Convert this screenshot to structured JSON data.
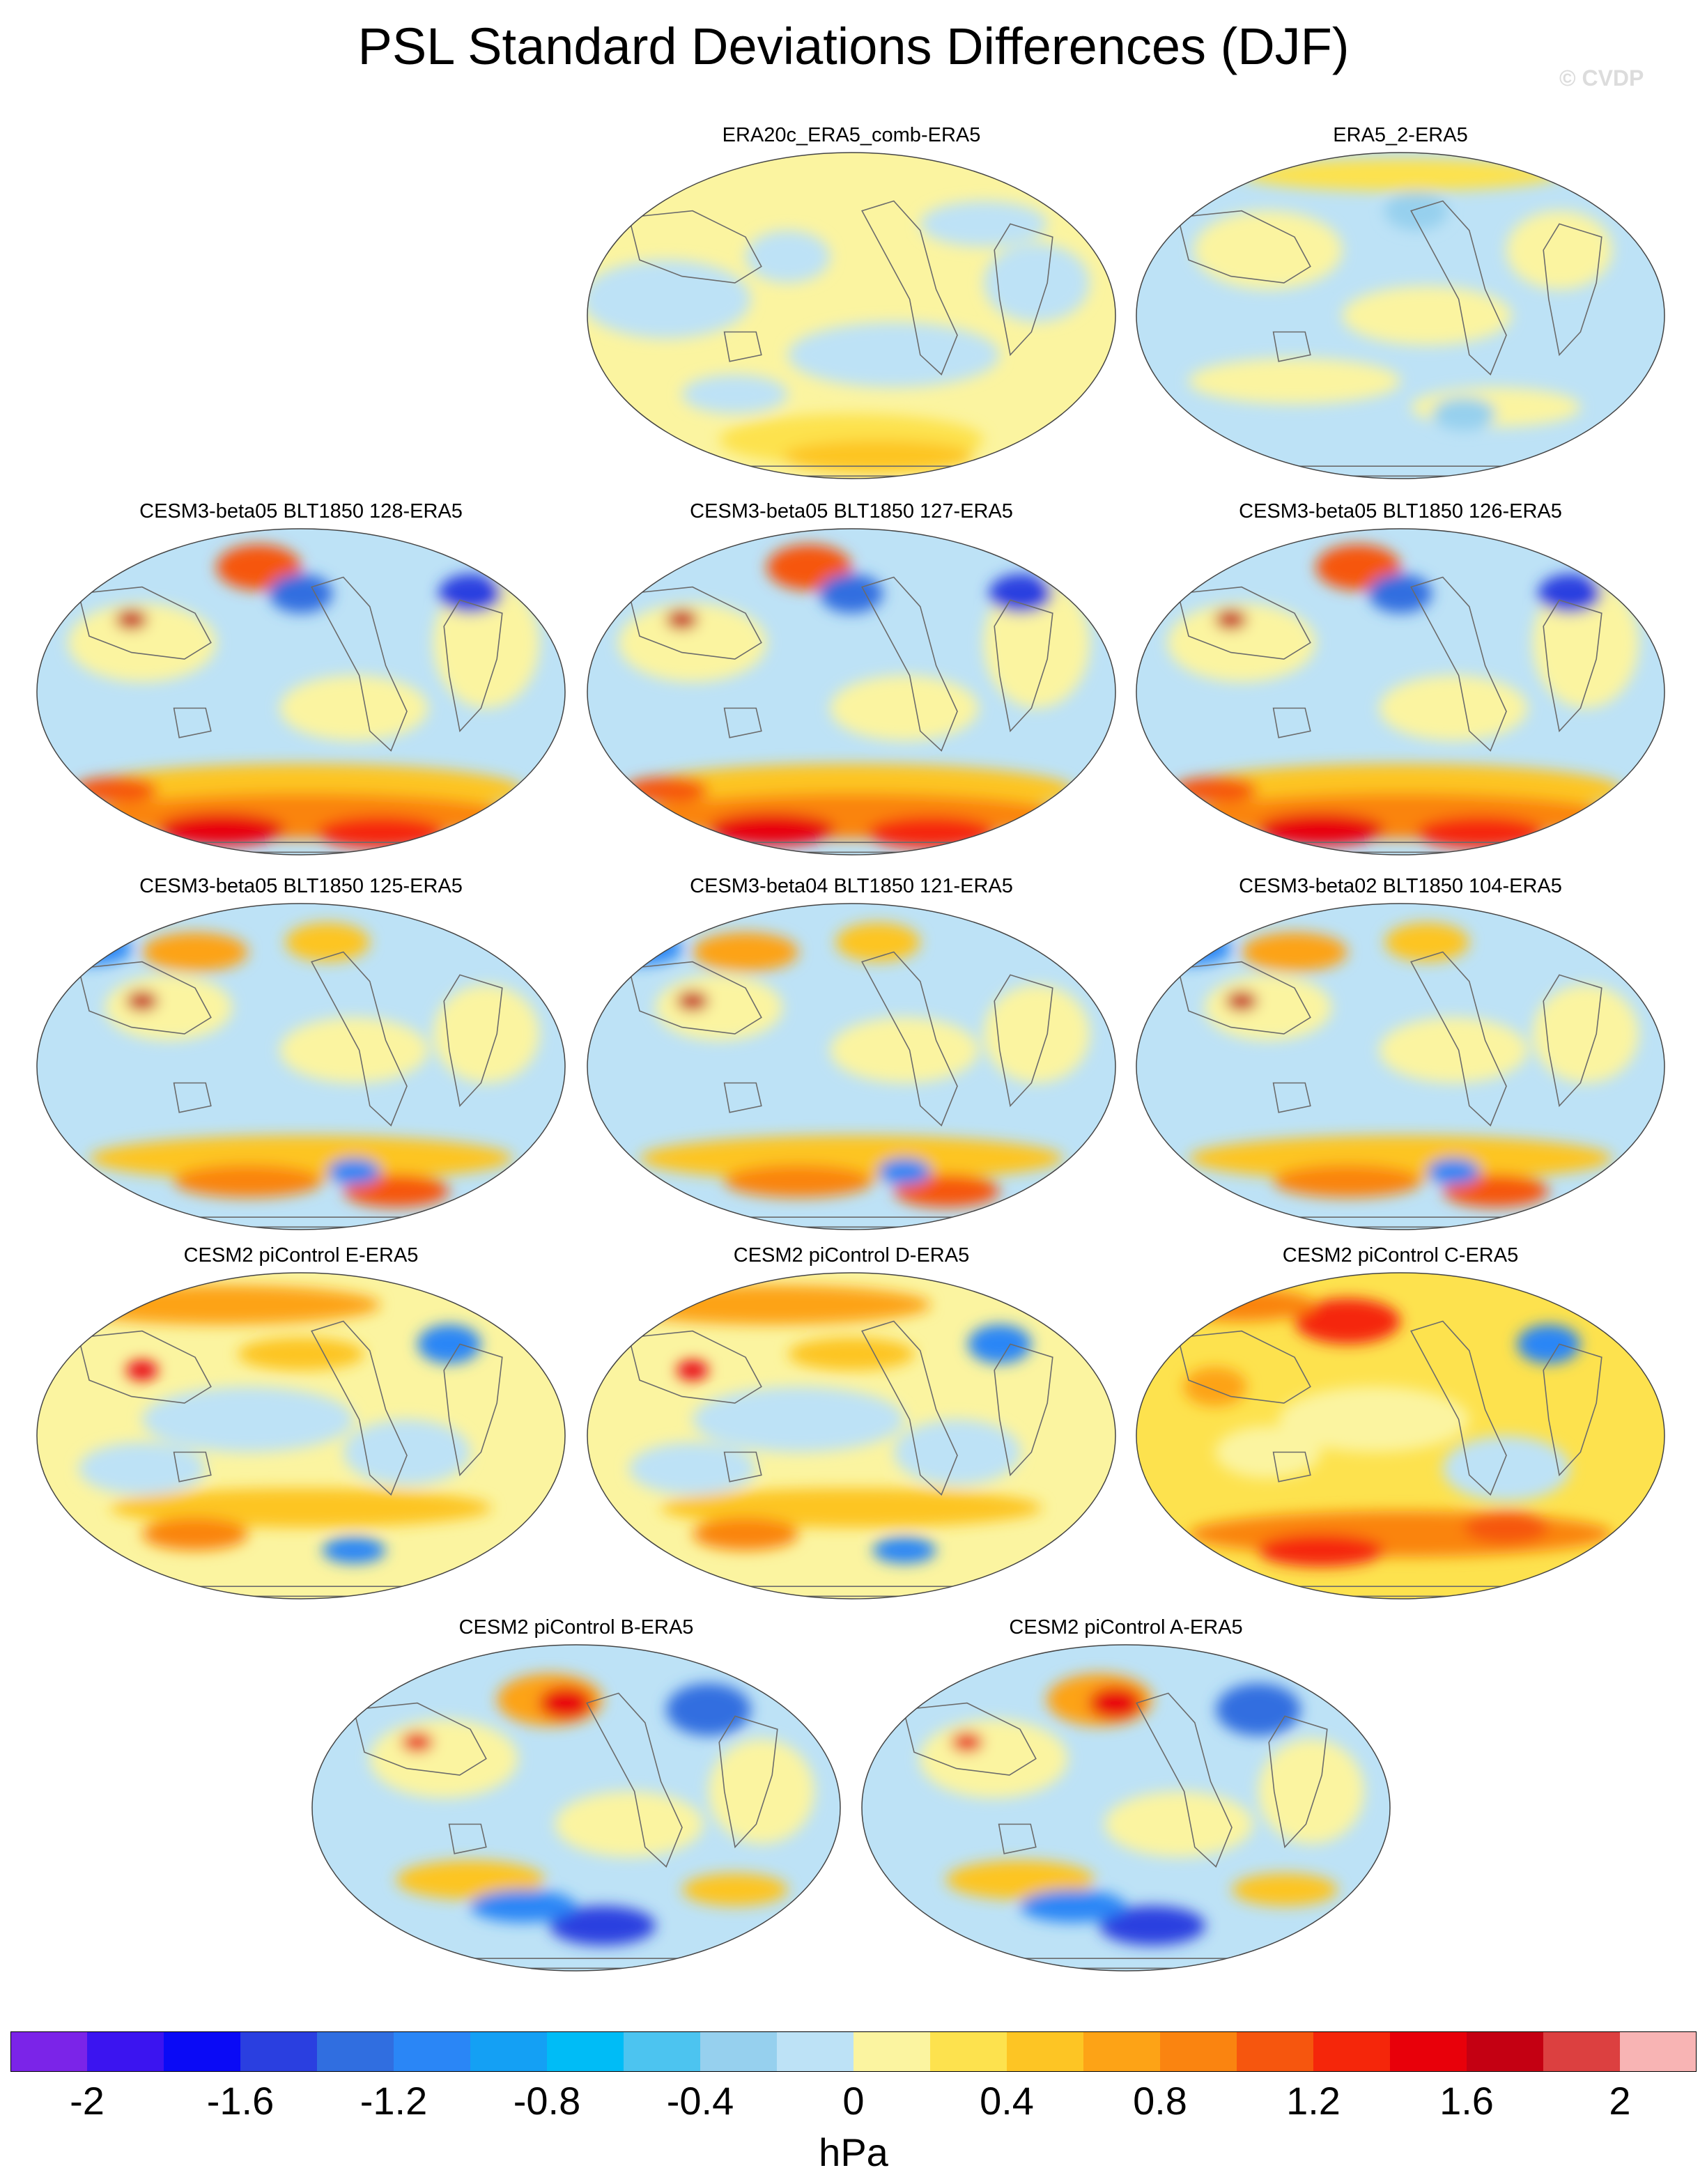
{
  "figure": {
    "title": "PSL Standard Deviations Differences (DJF)",
    "watermark": "© CVDP"
  },
  "panels": [
    {
      "title": "ERA20c_ERA5_comb-ERA5",
      "pattern": "weak"
    },
    {
      "title": "ERA5_2-ERA5",
      "pattern": "weak-blue"
    },
    {
      "title": "CESM3-beta05 BLT1850 128-ERA5",
      "pattern": "strong-south"
    },
    {
      "title": "CESM3-beta05 BLT1850 127-ERA5",
      "pattern": "strong-south"
    },
    {
      "title": "CESM3-beta05 BLT1850 126-ERA5",
      "pattern": "strong-south"
    },
    {
      "title": "CESM3-beta05 BLT1850 125-ERA5",
      "pattern": "moderate"
    },
    {
      "title": "CESM3-beta04 BLT1850 121-ERA5",
      "pattern": "moderate"
    },
    {
      "title": "CESM3-beta02 BLT1850 104-ERA5",
      "pattern": "moderate"
    },
    {
      "title": "CESM2 piControl E-ERA5",
      "pattern": "warm"
    },
    {
      "title": "CESM2 piControl D-ERA5",
      "pattern": "warm"
    },
    {
      "title": "CESM2 piControl C-ERA5",
      "pattern": "hot"
    },
    {
      "title": "CESM2 piControl B-ERA5",
      "pattern": "mixed"
    },
    {
      "title": "CESM2 piControl A-ERA5",
      "pattern": "mixed"
    }
  ],
  "colorbar": {
    "units": "hPa",
    "colors": [
      "#7b24e8",
      "#3b14f0",
      "#0a0af6",
      "#2a3fe0",
      "#306ee0",
      "#2a86f6",
      "#14a0f4",
      "#00bcf6",
      "#4cc4f0",
      "#96d0ee",
      "#bde2f6",
      "#fbf4a0",
      "#fde24e",
      "#fdc524",
      "#fda316",
      "#fa8410",
      "#f6560e",
      "#f5260a",
      "#e8000a",
      "#c40012",
      "#dc4040",
      "#f8b4b4"
    ],
    "tick_labels": [
      "-2",
      "-1.6",
      "-1.2",
      "-0.8",
      "-0.4",
      "0",
      "0.4",
      "0.8",
      "1.2",
      "1.6",
      "2"
    ]
  }
}
